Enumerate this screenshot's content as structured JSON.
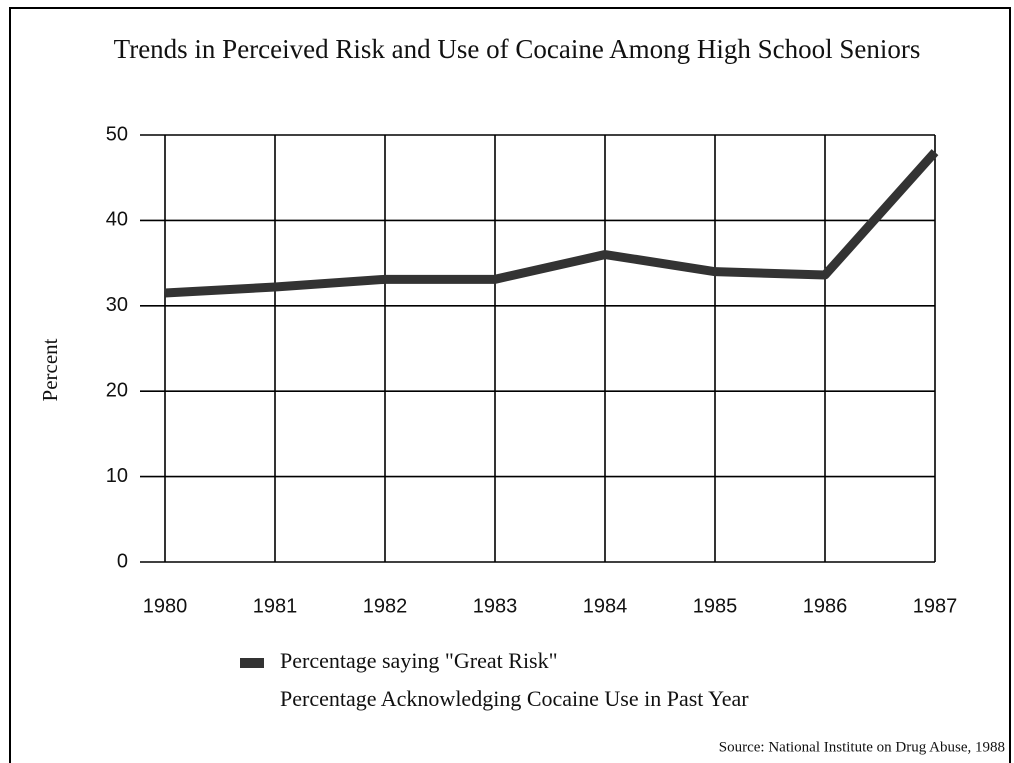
{
  "chart_data": {
    "type": "line",
    "title": "Trends in Perceived Risk and Use of Cocaine Among High School Seniors",
    "y_label": "Percent",
    "source": "Source:  National Institute on Drug Abuse, 1988",
    "categories": [
      "1980",
      "1981",
      "1982",
      "1983",
      "1984",
      "1985",
      "1986",
      "1987"
    ],
    "series": [
      {
        "name": "Percentage saying \"Great Risk\"",
        "color": "#333333",
        "values": [
          31.5,
          32.2,
          33.1,
          33.1,
          36,
          34,
          33.6,
          48
        ]
      },
      {
        "name": "Percentage Acknowledging Cocaine Use in Past Year",
        "values": [
          null,
          null,
          null,
          null,
          null,
          null,
          null,
          null
        ]
      }
    ],
    "ylim": [
      0,
      50
    ],
    "yticks": [
      0,
      10,
      20,
      30,
      40,
      50
    ],
    "grid": true
  }
}
